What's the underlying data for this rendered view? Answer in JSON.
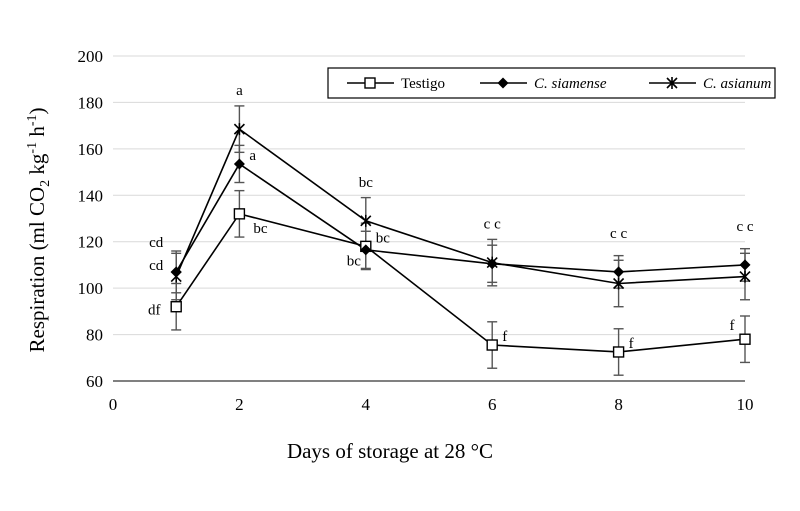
{
  "chart_data": {
    "type": "line",
    "title": "",
    "xlabel": "Days of storage at 28 °C",
    "ylabel": {
      "main": "Respiration (ml CO",
      "sub1": "2",
      "mid": " kg",
      "sup1": "-1",
      "mid2": " h",
      "sup2": "-1",
      "end": ")"
    },
    "xlim": [
      0,
      10
    ],
    "ylim": [
      60,
      200
    ],
    "xticks": [
      0,
      2,
      4,
      6,
      8,
      10
    ],
    "yticks": [
      60,
      80,
      100,
      120,
      140,
      160,
      180,
      200
    ],
    "grid": true,
    "legend_position": "top-right",
    "series": [
      {
        "name": "Testigo",
        "italic": false,
        "marker": "square-open",
        "x": [
          1,
          2,
          4,
          6,
          8,
          10
        ],
        "y": [
          92,
          132,
          118,
          75.5,
          72.5,
          78
        ],
        "error": [
          10,
          10,
          10,
          10,
          10,
          10
        ]
      },
      {
        "name": "C. siamense",
        "italic": true,
        "marker": "diamond-filled",
        "x": [
          1,
          2,
          4,
          6,
          8,
          10
        ],
        "y": [
          107,
          153.5,
          116.5,
          110.5,
          107,
          110
        ],
        "error": [
          9,
          8,
          8,
          8,
          7,
          7
        ]
      },
      {
        "name": "C. asianum",
        "italic": true,
        "marker": "asterisk",
        "x": [
          1,
          2,
          4,
          6,
          8,
          10
        ],
        "y": [
          105,
          168.5,
          129,
          111,
          102,
          105
        ],
        "error": [
          10,
          10,
          10,
          10,
          10,
          10
        ]
      }
    ],
    "annotations": [
      {
        "text": "cd",
        "x": 1,
        "y": 107,
        "side": "upper-left"
      },
      {
        "text": "cd",
        "x": 1,
        "y": 107,
        "side": "left"
      },
      {
        "text": "df",
        "x": 1,
        "y": 92,
        "side": "left"
      },
      {
        "text": "a",
        "x": 2,
        "y": 168.5,
        "side": "above"
      },
      {
        "text": "a",
        "x": 2,
        "y": 153.5,
        "side": "right"
      },
      {
        "text": "bc",
        "x": 2,
        "y": 132,
        "side": "lower-right"
      },
      {
        "text": "bc",
        "x": 4,
        "y": 129,
        "side": "above"
      },
      {
        "text": "bc",
        "x": 4,
        "y": 118,
        "side": "lower-left"
      },
      {
        "text": "bc",
        "x": 4,
        "y": 118,
        "side": "right"
      },
      {
        "text": "c c",
        "x": 6,
        "y": 111,
        "side": "above"
      },
      {
        "text": "f",
        "x": 6,
        "y": 75.5,
        "side": "right"
      },
      {
        "text": "c c",
        "x": 8,
        "y": 107,
        "side": "above"
      },
      {
        "text": "f",
        "x": 8,
        "y": 72.5,
        "side": "right"
      },
      {
        "text": "c c",
        "x": 10,
        "y": 110,
        "side": "above"
      },
      {
        "text": "f",
        "x": 10,
        "y": 78,
        "side": "left-above"
      }
    ]
  }
}
